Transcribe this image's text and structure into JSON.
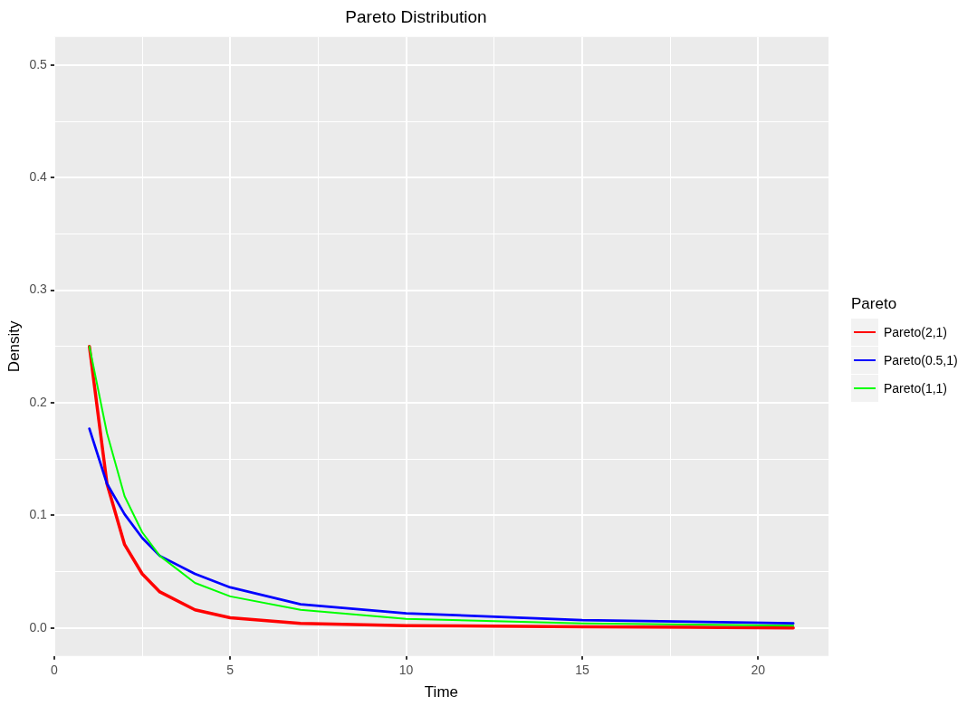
{
  "chart_data": {
    "type": "line",
    "title": "Pareto Distribution",
    "xlabel": "Time",
    "ylabel": "Density",
    "legend_title": "Pareto",
    "legend": "right",
    "grid": true,
    "x": [
      1,
      1.5,
      2,
      2.5,
      3,
      4,
      5,
      7,
      10,
      15,
      21
    ],
    "xlim": [
      0,
      22
    ],
    "xticks": [
      0,
      {
        "value": 2.5,
        "label": null
      },
      5,
      {
        "value": 7.5,
        "label": null
      },
      10,
      {
        "value": 12.5,
        "label": null
      },
      15,
      {
        "value": 17.5,
        "label": null
      },
      20
    ],
    "ylim": [
      -0.025,
      0.525
    ],
    "yticks": [
      {
        "value": 0,
        "label": "0.0"
      },
      {
        "value": 0.05,
        "label": null
      },
      0.1,
      {
        "value": 0.15,
        "label": null
      },
      0.2,
      {
        "value": 0.25,
        "label": null
      },
      0.3,
      {
        "value": 0.35,
        "label": null
      },
      0.4,
      {
        "value": 0.45,
        "label": null
      },
      0.5
    ],
    "series": [
      {
        "name": "Pareto(2,1)",
        "color": "#ff0000",
        "values": [
          0.25,
          0.128,
          0.074,
          0.048,
          0.032,
          0.016,
          0.009,
          0.004,
          0.002,
          0.001,
          0
        ]
      },
      {
        "name": "Pareto(0.5,1)",
        "color": "#0000ff",
        "values": [
          0.177,
          0.128,
          0.101,
          0.08,
          0.064,
          0.048,
          0.036,
          0.021,
          0.013,
          0.007,
          0.004
        ]
      },
      {
        "name": "Pareto(1,1)",
        "color": "#00ff00",
        "values": [
          0.25,
          0.173,
          0.117,
          0.085,
          0.064,
          0.04,
          0.028,
          0.016,
          0.008,
          0.004,
          0.002
        ]
      }
    ]
  }
}
